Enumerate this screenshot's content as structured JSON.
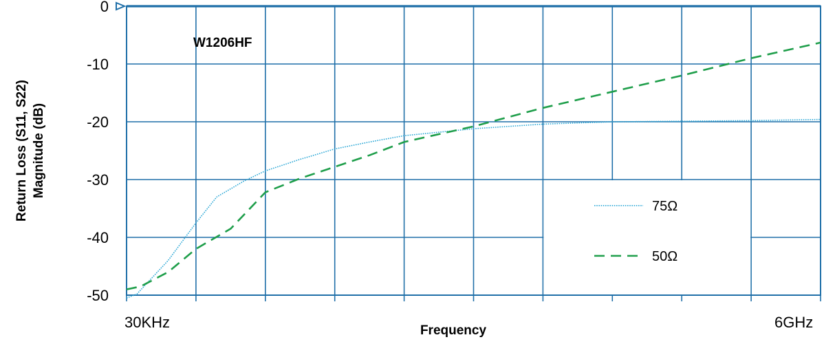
{
  "chart_data": {
    "type": "line",
    "title": "W1206HF",
    "xlabel": "Frequency",
    "ylabel": [
      "Return Loss (S11, S22)",
      "Magnitude (dB)"
    ],
    "x_tick_labels": [
      "30KHz",
      "6GHz"
    ],
    "y_ticks": [
      0,
      -10,
      -20,
      -30,
      -40,
      -50
    ],
    "y_tick_labels": [
      "0",
      "-10",
      "-20",
      "-30",
      "-40",
      "-50"
    ],
    "ylim": [
      -50,
      0
    ],
    "x_divisions": 10,
    "grid": true,
    "legend_position": "bottom-right",
    "series": [
      {
        "name": "75Ω",
        "style": "dotted",
        "color": "#2aa7d6",
        "points": [
          [
            0,
            -50.5
          ],
          [
            0.15,
            -49.8
          ],
          [
            0.6,
            -44
          ],
          [
            1.0,
            -37.5
          ],
          [
            1.3,
            -33
          ],
          [
            1.7,
            -30.2
          ],
          [
            2.0,
            -28.5
          ],
          [
            2.5,
            -26.5
          ],
          [
            3.0,
            -24.7
          ],
          [
            3.5,
            -23.5
          ],
          [
            4.0,
            -22.4
          ],
          [
            5.0,
            -21.2
          ],
          [
            6.0,
            -20.4
          ],
          [
            7.0,
            -20.0
          ],
          [
            8.0,
            -19.9
          ],
          [
            9.0,
            -19.8
          ],
          [
            10.0,
            -19.6
          ]
        ]
      },
      {
        "name": "50Ω",
        "style": "dashed",
        "color": "#1e9e4a",
        "points": [
          [
            0,
            -49
          ],
          [
            0.2,
            -48.5
          ],
          [
            0.6,
            -46
          ],
          [
            1.0,
            -42
          ],
          [
            1.5,
            -38.5
          ],
          [
            2.0,
            -32.2
          ],
          [
            2.5,
            -29.8
          ],
          [
            3.0,
            -27.8
          ],
          [
            3.5,
            -25.8
          ],
          [
            4.0,
            -23.5
          ],
          [
            5.0,
            -20.8
          ],
          [
            6.0,
            -17.6
          ],
          [
            7.0,
            -14.8
          ],
          [
            8.0,
            -12.0
          ],
          [
            9.0,
            -9.0
          ],
          [
            10.0,
            -6.3
          ]
        ]
      }
    ]
  },
  "colors": {
    "grid": "#1f6fa8",
    "frame": "#1f6fa8"
  }
}
